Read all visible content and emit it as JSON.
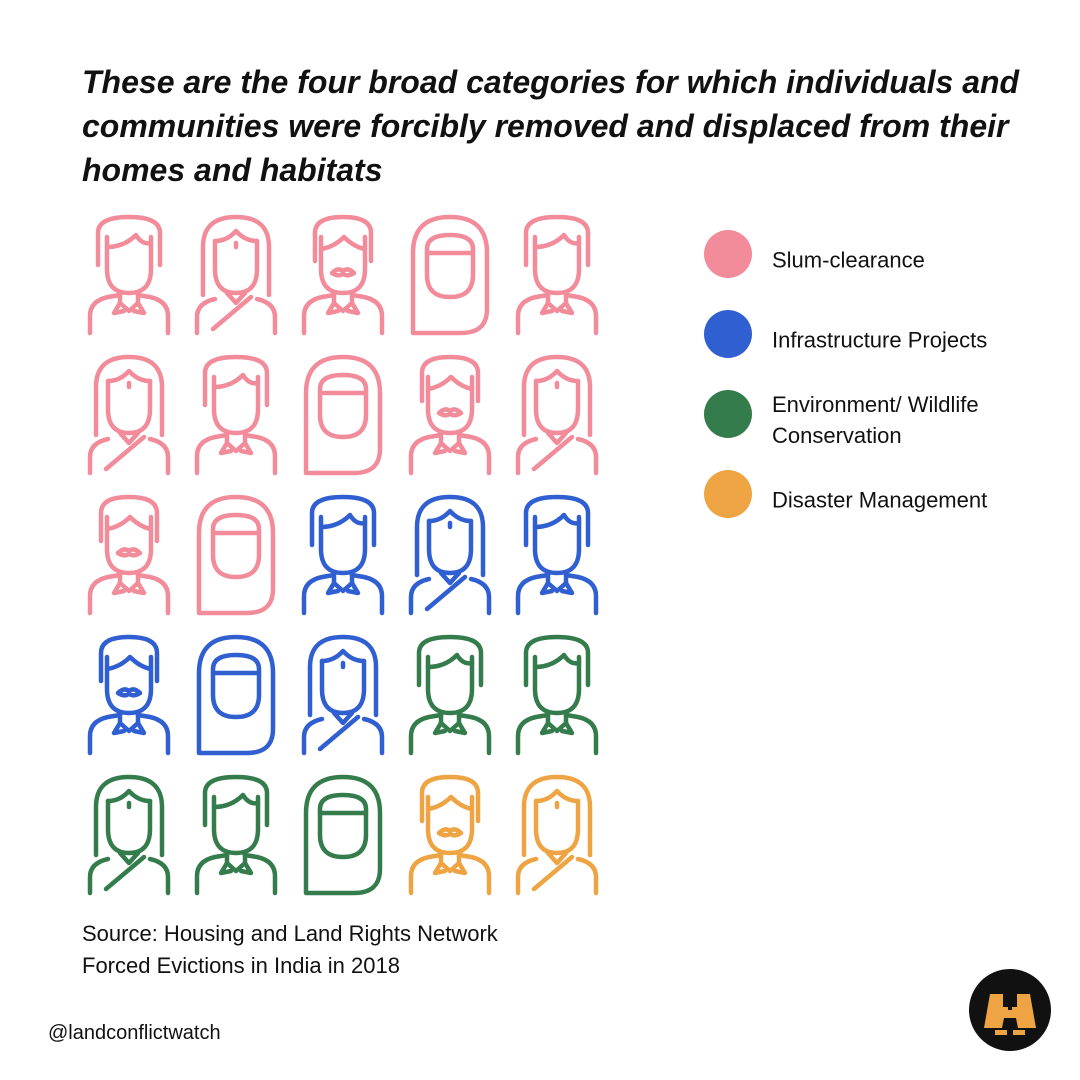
{
  "title": "These are the four broad categories for which individuals and communities were forcibly removed and displaced from their homes and habitats",
  "legend": [
    {
      "label": "Slum-clearance",
      "color": "#F28B9A"
    },
    {
      "label": "Infrastructure Projects",
      "color": "#2F5FD0"
    },
    {
      "label": "Environment/ Wildlife Conservation",
      "color": "#347C4C"
    },
    {
      "label": "Disaster Management",
      "color": "#EFA443"
    }
  ],
  "chart_data": {
    "type": "pictogram",
    "categories": [
      "Slum-clearance",
      "Infrastructure Projects",
      "Environment/ Wildlife Conservation",
      "Disaster Management"
    ],
    "values": [
      12,
      6,
      5,
      2
    ],
    "colors": [
      "#F28B9A",
      "#2F5FD0",
      "#347C4C",
      "#EFA443"
    ],
    "grid": {
      "rows": 5,
      "cols": 5
    },
    "icon_sequence": [
      "man-icon",
      "woman-icon",
      "mustache-man-icon",
      "hijab-woman-icon",
      "man-icon",
      "woman-icon",
      "man-icon",
      "hijab-woman-icon",
      "mustache-man-icon",
      "woman-icon",
      "mustache-man-icon",
      "hijab-woman-icon",
      "man-icon",
      "woman-icon",
      "man-icon",
      "mustache-man-icon",
      "hijab-woman-icon",
      "woman-icon",
      "man-icon",
      "man-icon",
      "woman-icon",
      "man-icon",
      "hijab-woman-icon",
      "mustache-man-icon",
      "woman-icon"
    ]
  },
  "source": {
    "line1": "Source: Housing and Land Rights Network",
    "line2": "Forced Evictions in India in 2018"
  },
  "handle": "@landconflictwatch",
  "logo": {
    "icon": "binoculars-logo-icon",
    "bg_color": "#111111",
    "color": "#EFA443"
  }
}
